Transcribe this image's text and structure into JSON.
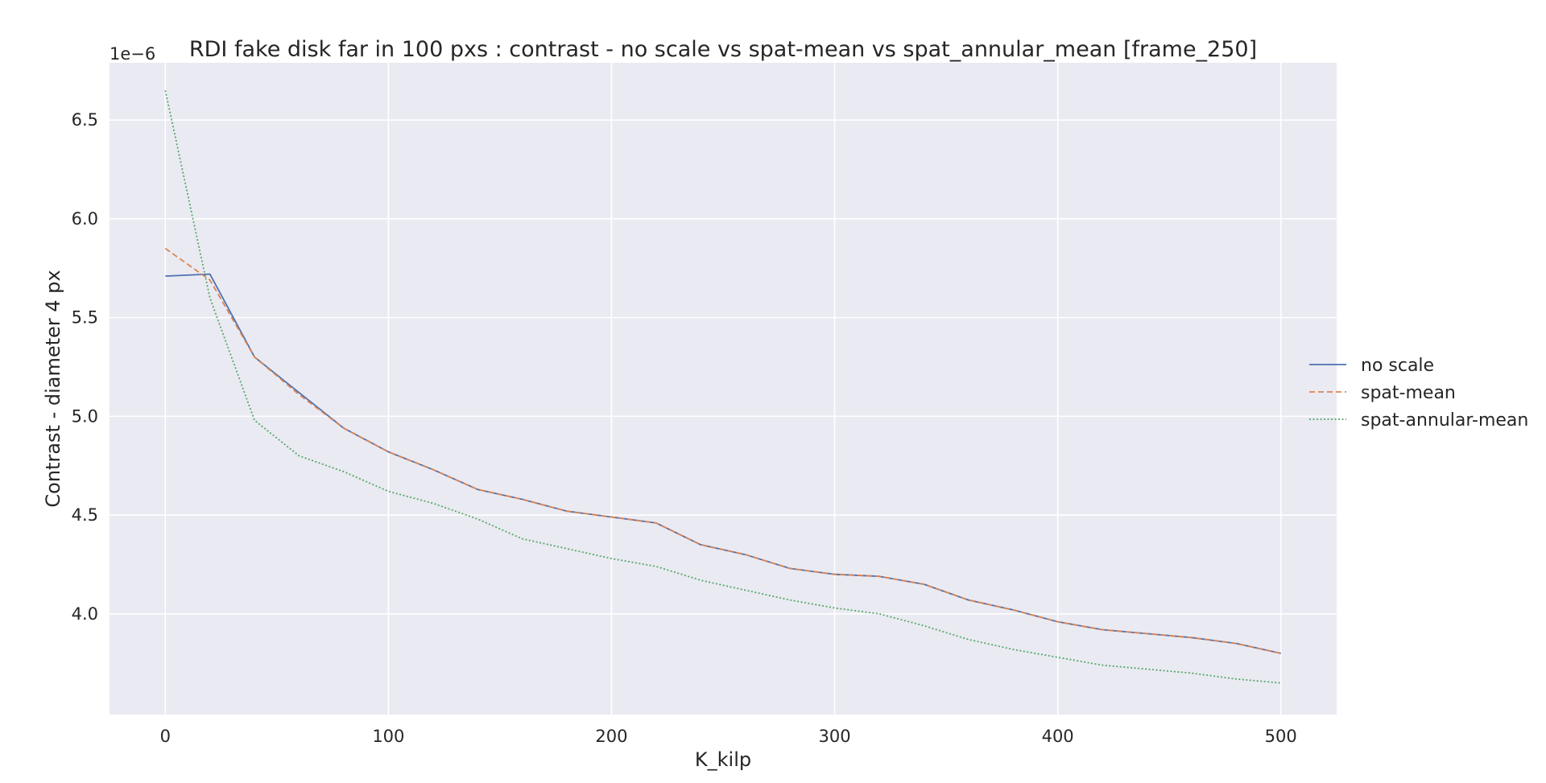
{
  "chart_data": {
    "type": "line",
    "title": "RDI fake disk far in 100 pxs : contrast - no scale vs spat-mean vs spat_annular_mean [frame_250]",
    "xlabel": "K_kilp",
    "ylabel": "Contrast - diameter 4 px",
    "y_offset_text": "1e−6",
    "xlim": [
      -25,
      525
    ],
    "ylim": [
      3.49,
      6.79
    ],
    "x_ticks": [
      0,
      100,
      200,
      300,
      400,
      500
    ],
    "x_tick_labels": [
      "0",
      "100",
      "200",
      "300",
      "400",
      "500"
    ],
    "y_ticks": [
      4.0,
      4.5,
      5.0,
      5.5,
      6.0,
      6.5
    ],
    "y_tick_labels": [
      "4.0",
      "4.5",
      "5.0",
      "5.5",
      "6.0",
      "6.5"
    ],
    "grid": true,
    "legend_position": "right, outside plot",
    "x": [
      0,
      20,
      40,
      60,
      80,
      100,
      120,
      140,
      160,
      180,
      200,
      220,
      240,
      260,
      280,
      300,
      320,
      340,
      360,
      380,
      400,
      420,
      440,
      460,
      480,
      500
    ],
    "series": [
      {
        "name": "no scale",
        "color": "#4c72b0",
        "dash": "solid",
        "values": [
          5.71,
          5.72,
          5.3,
          5.12,
          4.94,
          4.82,
          4.73,
          4.63,
          4.58,
          4.52,
          4.49,
          4.46,
          4.35,
          4.3,
          4.23,
          4.2,
          4.19,
          4.15,
          4.07,
          4.02,
          3.96,
          3.92,
          3.9,
          3.88,
          3.85,
          3.8
        ]
      },
      {
        "name": "spat-mean",
        "color": "#dd8452",
        "dash": "dashed",
        "values": [
          5.85,
          5.69,
          5.3,
          5.11,
          4.94,
          4.82,
          4.73,
          4.63,
          4.58,
          4.52,
          4.49,
          4.46,
          4.35,
          4.3,
          4.23,
          4.2,
          4.19,
          4.15,
          4.07,
          4.02,
          3.96,
          3.92,
          3.9,
          3.88,
          3.85,
          3.8
        ]
      },
      {
        "name": "spat-annular-mean",
        "color": "#55a868",
        "dash": "dotted",
        "values": [
          6.65,
          5.6,
          4.98,
          4.8,
          4.72,
          4.62,
          4.56,
          4.48,
          4.38,
          4.33,
          4.28,
          4.24,
          4.17,
          4.12,
          4.07,
          4.03,
          4.0,
          3.94,
          3.87,
          3.82,
          3.78,
          3.74,
          3.72,
          3.7,
          3.67,
          3.65
        ]
      }
    ]
  }
}
